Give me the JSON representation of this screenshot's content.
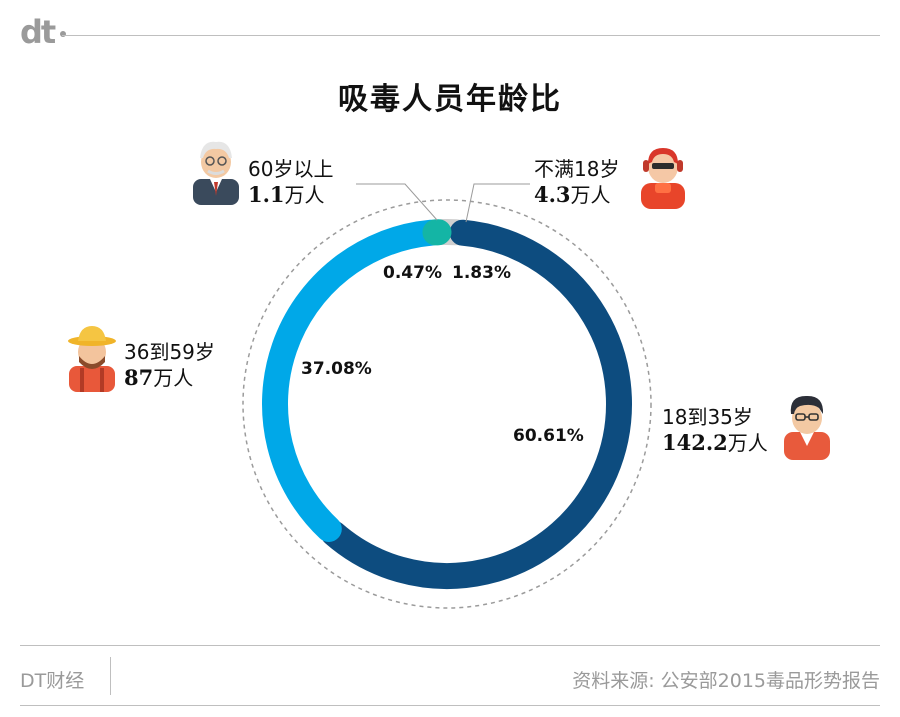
{
  "header": {
    "logo_text": "dt"
  },
  "chart_data": {
    "type": "pie",
    "title": "吸毒人员年龄比",
    "categories": [
      "18到35岁",
      "36到59岁",
      "60岁以上",
      "不满18岁"
    ],
    "values": [
      142.2,
      87,
      1.1,
      4.3
    ],
    "value_labels": [
      "142.2",
      "87",
      "1.1",
      "4.3"
    ],
    "unit": "万人",
    "percent_labels": [
      "60.61%",
      "37.08%",
      "0.47%",
      "1.83%"
    ],
    "percents": [
      60.61,
      37.08,
      0.47,
      1.83
    ],
    "colors": [
      "#0d4c7f",
      "#00a8e8",
      "#14b5a5",
      "#cfcfcf"
    ],
    "icons": [
      "young-man-icon",
      "farmer-man-icon",
      "elderly-man-icon",
      "teen-headphones-icon"
    ]
  },
  "footer": {
    "brand": "DT财经",
    "source": "资料来源: 公安部2015毒品形势报告"
  }
}
